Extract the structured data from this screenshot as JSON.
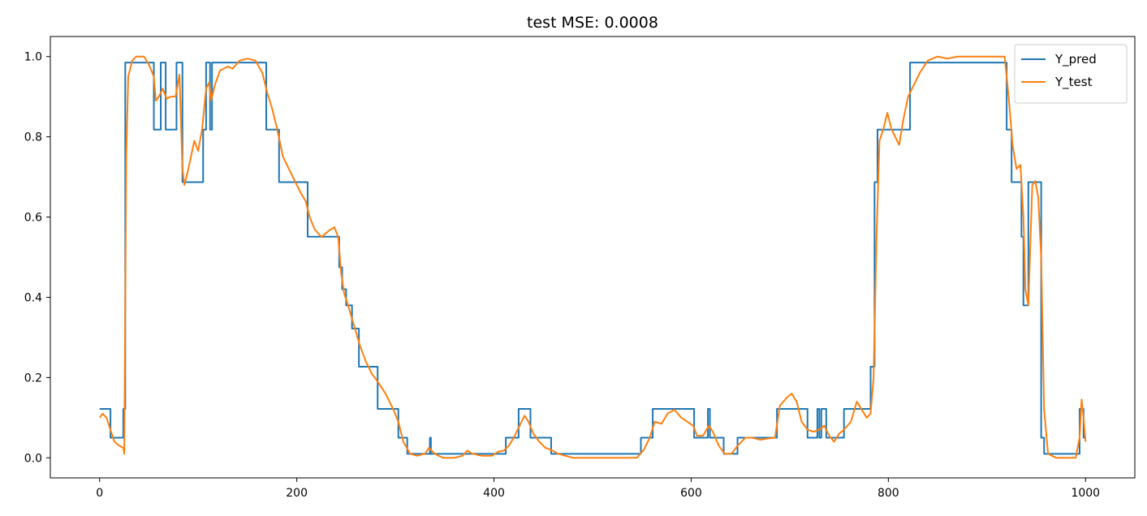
{
  "chart_data": {
    "type": "line",
    "title": "test MSE:  0.0008",
    "xlabel": "",
    "ylabel": "",
    "xlim": [
      -50,
      1050
    ],
    "ylim": [
      -0.05,
      1.05
    ],
    "xticks": [
      0,
      200,
      400,
      600,
      800,
      1000
    ],
    "yticks": [
      0.0,
      0.2,
      0.4,
      0.6,
      0.8,
      1.0
    ],
    "grid": false,
    "legend": "top-right",
    "series": [
      {
        "name": "Y_pred",
        "color": "#1f77b4",
        "points": [
          [
            0,
            0.122
          ],
          [
            11,
            0.122
          ],
          [
            11,
            0.05
          ],
          [
            24,
            0.05
          ],
          [
            24,
            0.122
          ],
          [
            26,
            0.122
          ],
          [
            26,
            0.985
          ],
          [
            55,
            0.985
          ],
          [
            55,
            0.818
          ],
          [
            62,
            0.818
          ],
          [
            62,
            0.985
          ],
          [
            67,
            0.985
          ],
          [
            67,
            0.818
          ],
          [
            78,
            0.818
          ],
          [
            78,
            0.985
          ],
          [
            84,
            0.985
          ],
          [
            84,
            0.687
          ],
          [
            105,
            0.687
          ],
          [
            105,
            0.818
          ],
          [
            108,
            0.818
          ],
          [
            108,
            0.985
          ],
          [
            112,
            0.985
          ],
          [
            112,
            0.818
          ],
          [
            114,
            0.818
          ],
          [
            114,
            0.985
          ],
          [
            169,
            0.985
          ],
          [
            169,
            0.818
          ],
          [
            182,
            0.818
          ],
          [
            182,
            0.687
          ],
          [
            211,
            0.687
          ],
          [
            211,
            0.551
          ],
          [
            243,
            0.551
          ],
          [
            243,
            0.475
          ],
          [
            246,
            0.475
          ],
          [
            246,
            0.42
          ],
          [
            250,
            0.42
          ],
          [
            250,
            0.38
          ],
          [
            256,
            0.38
          ],
          [
            256,
            0.322
          ],
          [
            263,
            0.322
          ],
          [
            263,
            0.227
          ],
          [
            282,
            0.227
          ],
          [
            282,
            0.122
          ],
          [
            303,
            0.122
          ],
          [
            303,
            0.05
          ],
          [
            312,
            0.05
          ],
          [
            312,
            0.01
          ],
          [
            335,
            0.01
          ],
          [
            335,
            0.05
          ],
          [
            336,
            0.05
          ],
          [
            336,
            0.01
          ],
          [
            412,
            0.01
          ],
          [
            412,
            0.05
          ],
          [
            425,
            0.05
          ],
          [
            425,
            0.122
          ],
          [
            437,
            0.122
          ],
          [
            437,
            0.05
          ],
          [
            458,
            0.05
          ],
          [
            458,
            0.01
          ],
          [
            549,
            0.01
          ],
          [
            549,
            0.05
          ],
          [
            561,
            0.05
          ],
          [
            561,
            0.122
          ],
          [
            603,
            0.122
          ],
          [
            603,
            0.05
          ],
          [
            617,
            0.05
          ],
          [
            617,
            0.122
          ],
          [
            619,
            0.122
          ],
          [
            619,
            0.05
          ],
          [
            633,
            0.05
          ],
          [
            633,
            0.01
          ],
          [
            647,
            0.01
          ],
          [
            647,
            0.05
          ],
          [
            687,
            0.05
          ],
          [
            687,
            0.122
          ],
          [
            718,
            0.122
          ],
          [
            718,
            0.05
          ],
          [
            728,
            0.05
          ],
          [
            728,
            0.122
          ],
          [
            730,
            0.122
          ],
          [
            730,
            0.05
          ],
          [
            732,
            0.05
          ],
          [
            732,
            0.122
          ],
          [
            737,
            0.122
          ],
          [
            737,
            0.05
          ],
          [
            755,
            0.05
          ],
          [
            755,
            0.122
          ],
          [
            782,
            0.122
          ],
          [
            782,
            0.227
          ],
          [
            786,
            0.227
          ],
          [
            786,
            0.687
          ],
          [
            789,
            0.687
          ],
          [
            789,
            0.818
          ],
          [
            822,
            0.818
          ],
          [
            822,
            0.985
          ],
          [
            920,
            0.985
          ],
          [
            920,
            0.818
          ],
          [
            925,
            0.818
          ],
          [
            925,
            0.687
          ],
          [
            935,
            0.687
          ],
          [
            935,
            0.551
          ],
          [
            937,
            0.551
          ],
          [
            937,
            0.38
          ],
          [
            942,
            0.38
          ],
          [
            942,
            0.687
          ],
          [
            955,
            0.687
          ],
          [
            955,
            0.05
          ],
          [
            958,
            0.05
          ],
          [
            958,
            0.01
          ],
          [
            994,
            0.01
          ],
          [
            994,
            0.122
          ],
          [
            998,
            0.122
          ],
          [
            998,
            0.05
          ],
          [
            1000,
            0.05
          ]
        ]
      },
      {
        "name": "Y_test",
        "color": "#ff7f0e",
        "points": [
          [
            0,
            0.1
          ],
          [
            3,
            0.11
          ],
          [
            7,
            0.1
          ],
          [
            11,
            0.07
          ],
          [
            15,
            0.04
          ],
          [
            20,
            0.03
          ],
          [
            24,
            0.025
          ],
          [
            25,
            0.01
          ],
          [
            27,
            0.75
          ],
          [
            29,
            0.95
          ],
          [
            33,
            0.99
          ],
          [
            37,
            1.0
          ],
          [
            45,
            1.0
          ],
          [
            50,
            0.98
          ],
          [
            55,
            0.95
          ],
          [
            57,
            0.89
          ],
          [
            60,
            0.9
          ],
          [
            64,
            0.92
          ],
          [
            68,
            0.895
          ],
          [
            72,
            0.9
          ],
          [
            77,
            0.9
          ],
          [
            81,
            0.955
          ],
          [
            84,
            0.72
          ],
          [
            86,
            0.68
          ],
          [
            90,
            0.72
          ],
          [
            96,
            0.79
          ],
          [
            100,
            0.765
          ],
          [
            104,
            0.82
          ],
          [
            108,
            0.92
          ],
          [
            111,
            0.935
          ],
          [
            113,
            0.89
          ],
          [
            117,
            0.93
          ],
          [
            122,
            0.965
          ],
          [
            130,
            0.975
          ],
          [
            135,
            0.97
          ],
          [
            142,
            0.99
          ],
          [
            150,
            0.995
          ],
          [
            158,
            0.99
          ],
          [
            165,
            0.96
          ],
          [
            170,
            0.91
          ],
          [
            175,
            0.87
          ],
          [
            180,
            0.82
          ],
          [
            186,
            0.75
          ],
          [
            192,
            0.72
          ],
          [
            198,
            0.69
          ],
          [
            204,
            0.66
          ],
          [
            209,
            0.64
          ],
          [
            213,
            0.6
          ],
          [
            218,
            0.57
          ],
          [
            225,
            0.55
          ],
          [
            232,
            0.565
          ],
          [
            238,
            0.575
          ],
          [
            242,
            0.55
          ],
          [
            245,
            0.46
          ],
          [
            248,
            0.41
          ],
          [
            252,
            0.38
          ],
          [
            258,
            0.33
          ],
          [
            264,
            0.28
          ],
          [
            270,
            0.24
          ],
          [
            276,
            0.21
          ],
          [
            282,
            0.19
          ],
          [
            290,
            0.16
          ],
          [
            298,
            0.12
          ],
          [
            303,
            0.09
          ],
          [
            308,
            0.04
          ],
          [
            315,
            0.01
          ],
          [
            322,
            0.005
          ],
          [
            330,
            0.01
          ],
          [
            334,
            0.025
          ],
          [
            340,
            0.01
          ],
          [
            348,
            0.0
          ],
          [
            360,
            0.0
          ],
          [
            368,
            0.005
          ],
          [
            373,
            0.018
          ],
          [
            378,
            0.01
          ],
          [
            388,
            0.005
          ],
          [
            398,
            0.005
          ],
          [
            404,
            0.015
          ],
          [
            410,
            0.018
          ],
          [
            415,
            0.03
          ],
          [
            420,
            0.05
          ],
          [
            426,
            0.08
          ],
          [
            431,
            0.105
          ],
          [
            435,
            0.09
          ],
          [
            440,
            0.06
          ],
          [
            446,
            0.04
          ],
          [
            452,
            0.025
          ],
          [
            458,
            0.02
          ],
          [
            465,
            0.01
          ],
          [
            480,
            0.0
          ],
          [
            520,
            0.0
          ],
          [
            545,
            0.0
          ],
          [
            552,
            0.02
          ],
          [
            558,
            0.05
          ],
          [
            563,
            0.09
          ],
          [
            570,
            0.085
          ],
          [
            576,
            0.11
          ],
          [
            583,
            0.12
          ],
          [
            590,
            0.1
          ],
          [
            596,
            0.09
          ],
          [
            602,
            0.08
          ],
          [
            606,
            0.055
          ],
          [
            612,
            0.055
          ],
          [
            618,
            0.08
          ],
          [
            622,
            0.065
          ],
          [
            628,
            0.03
          ],
          [
            634,
            0.01
          ],
          [
            641,
            0.01
          ],
          [
            647,
            0.03
          ],
          [
            655,
            0.05
          ],
          [
            662,
            0.05
          ],
          [
            670,
            0.045
          ],
          [
            678,
            0.048
          ],
          [
            685,
            0.05
          ],
          [
            690,
            0.13
          ],
          [
            697,
            0.15
          ],
          [
            702,
            0.16
          ],
          [
            707,
            0.14
          ],
          [
            712,
            0.09
          ],
          [
            718,
            0.07
          ],
          [
            724,
            0.065
          ],
          [
            730,
            0.07
          ],
          [
            735,
            0.08
          ],
          [
            740,
            0.055
          ],
          [
            745,
            0.04
          ],
          [
            750,
            0.06
          ],
          [
            755,
            0.07
          ],
          [
            762,
            0.09
          ],
          [
            768,
            0.14
          ],
          [
            773,
            0.12
          ],
          [
            778,
            0.1
          ],
          [
            782,
            0.11
          ],
          [
            785,
            0.2
          ],
          [
            788,
            0.55
          ],
          [
            791,
            0.79
          ],
          [
            795,
            0.82
          ],
          [
            799,
            0.86
          ],
          [
            803,
            0.82
          ],
          [
            807,
            0.8
          ],
          [
            811,
            0.78
          ],
          [
            815,
            0.84
          ],
          [
            820,
            0.9
          ],
          [
            826,
            0.93
          ],
          [
            832,
            0.96
          ],
          [
            840,
            0.99
          ],
          [
            850,
            1.0
          ],
          [
            860,
            0.995
          ],
          [
            870,
            1.0
          ],
          [
            900,
            1.0
          ],
          [
            918,
            1.0
          ],
          [
            922,
            0.9
          ],
          [
            926,
            0.78
          ],
          [
            930,
            0.72
          ],
          [
            934,
            0.73
          ],
          [
            937,
            0.6
          ],
          [
            939,
            0.42
          ],
          [
            942,
            0.38
          ],
          [
            946,
            0.68
          ],
          [
            949,
            0.69
          ],
          [
            952,
            0.65
          ],
          [
            955,
            0.5
          ],
          [
            958,
            0.12
          ],
          [
            962,
            0.01
          ],
          [
            966,
            0.005
          ],
          [
            970,
            0.0
          ],
          [
            990,
            0.0
          ],
          [
            994,
            0.05
          ],
          [
            996,
            0.145
          ],
          [
            998,
            0.1
          ],
          [
            1000,
            0.04
          ]
        ]
      }
    ]
  }
}
